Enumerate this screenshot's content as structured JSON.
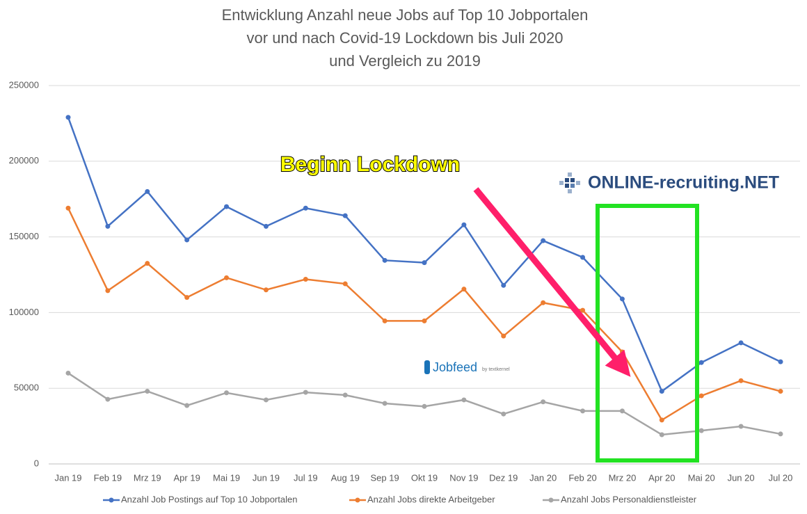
{
  "chart_data": {
    "type": "line",
    "title": [
      "Entwicklung Anzahl neue Jobs auf Top 10 Jobportalen",
      "vor und nach Covid-19 Lockdown bis Juli 2020",
      "und Vergleich zu 2019"
    ],
    "categories": [
      "Jan 19",
      "Feb 19",
      "Mrz 19",
      "Apr 19",
      "Mai 19",
      "Jun 19",
      "Jul 19",
      "Aug 19",
      "Sep 19",
      "Okt 19",
      "Nov 19",
      "Dez 19",
      "Jan 20",
      "Feb 20",
      "Mrz 20",
      "Apr 20",
      "Mai 20",
      "Jun 20",
      "Jul 20"
    ],
    "series": [
      {
        "name": "Anzahl Job Postings auf Top 10 Jobportalen",
        "color": "#4472c4",
        "values": [
          229000,
          157000,
          180000,
          148000,
          170000,
          157000,
          169000,
          164000,
          134500,
          133000,
          158000,
          118000,
          147500,
          136500,
          109000,
          48000,
          67000,
          80000,
          67500
        ]
      },
      {
        "name": "Anzahl Jobs direkte Arbeitgeber",
        "color": "#ed7d31",
        "values": [
          169000,
          114500,
          132500,
          110000,
          123000,
          115000,
          122000,
          119000,
          94500,
          94500,
          115500,
          84500,
          106500,
          101500,
          74000,
          29000,
          45000,
          55000,
          48000
        ]
      },
      {
        "name": "Anzahl Jobs Personaldienstleister",
        "color": "#a5a5a5",
        "values": [
          60000,
          42700,
          48000,
          38600,
          47000,
          42300,
          47300,
          45500,
          40000,
          38000,
          42300,
          33000,
          41000,
          35000,
          35000,
          19300,
          22000,
          24800,
          19800
        ]
      }
    ],
    "ylim": [
      0,
      250000
    ],
    "yticks": [
      0,
      50000,
      100000,
      150000,
      200000,
      250000
    ],
    "grid": true,
    "legend": "bottom",
    "annotations": [
      "Beginn Lockdown",
      "ONLINE-recruiting.NET",
      "Jobfeed",
      "by textkernel"
    ]
  }
}
